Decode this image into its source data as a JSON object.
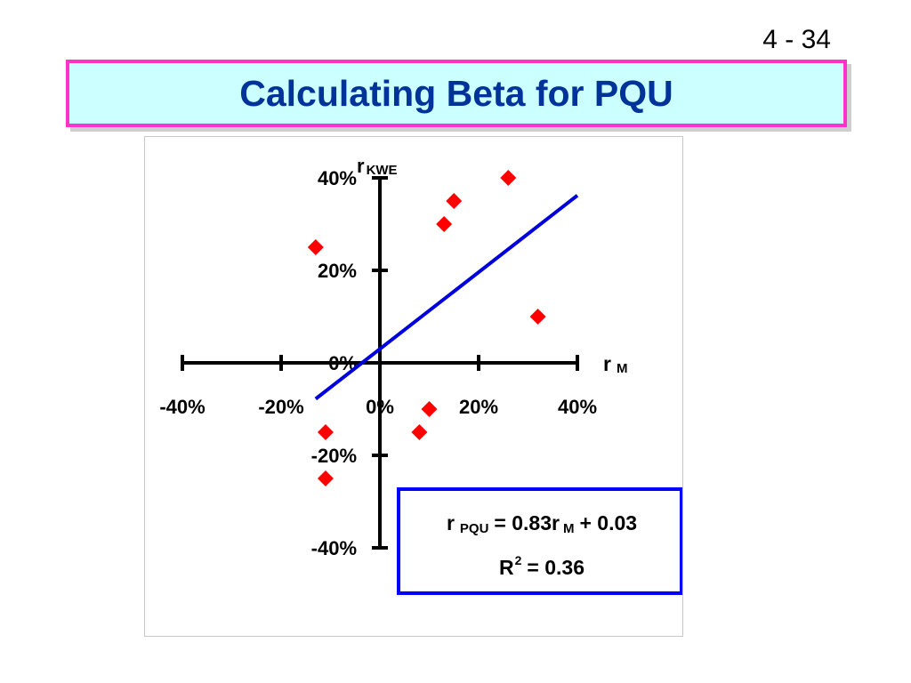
{
  "slide": {
    "page_number": "4 - 34",
    "title": "Calculating Beta for PQU"
  },
  "colors": {
    "title_text": "#003399",
    "title_background": "#ccffff",
    "title_border": "#ff33cc",
    "points": "#ff0000",
    "regression_line": "#0000dd",
    "equation_border": "#0000ff"
  },
  "chart_data": {
    "type": "scatter",
    "x_axis_label": {
      "main": "r",
      "sub": "M"
    },
    "y_axis_label": {
      "main": "r",
      "sub": "KWE"
    },
    "xlim": [
      -40,
      40
    ],
    "ylim": [
      -40,
      40
    ],
    "x_ticks": [
      -40,
      -20,
      0,
      20,
      40
    ],
    "y_ticks": [
      40,
      20,
      0,
      -20,
      -40
    ],
    "x_tick_labels": [
      "-40%",
      "-20%",
      "0%",
      "20%",
      "40%"
    ],
    "y_tick_labels": [
      "40%",
      "20%",
      "0%",
      "-20%",
      "-40%"
    ],
    "points": [
      {
        "x": -13,
        "y": 25
      },
      {
        "x": -11,
        "y": -15
      },
      {
        "x": -11,
        "y": -25
      },
      {
        "x": 8,
        "y": -15
      },
      {
        "x": 10,
        "y": -10
      },
      {
        "x": 13,
        "y": 30
      },
      {
        "x": 15,
        "y": 35
      },
      {
        "x": 26,
        "y": 40
      },
      {
        "x": 32,
        "y": 10
      }
    ],
    "regression": {
      "slope": 0.83,
      "intercept": 3,
      "x_range": [
        -13,
        40
      ]
    },
    "grid": false,
    "equation": {
      "line1": {
        "r": "r",
        "sub1": "PQU",
        "middle": "= 0.83r",
        "sub2": "M",
        "end": "+ 0.03"
      },
      "line2": {
        "R": "R",
        "sup": "2",
        "end": "= 0.36"
      }
    }
  }
}
